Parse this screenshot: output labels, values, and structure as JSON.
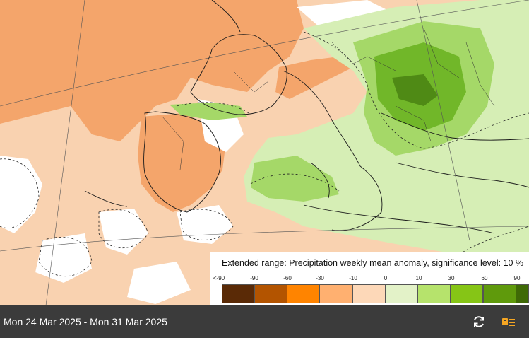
{
  "legend": {
    "title": "Extended range: Precipitation weekly mean anomaly, significance level: 10 %",
    "ticks": [
      "<-90",
      "-90",
      "-60",
      "-30",
      "-10",
      "0",
      "10",
      "30",
      "60",
      "90"
    ],
    "colors": [
      "#5a2a06",
      "#b35400",
      "#ff8400",
      "#ffb070",
      "#fdd8b8",
      "#e3f2c8",
      "#b6e36c",
      "#86c516",
      "#5f9a0c",
      "#3f6a06"
    ]
  },
  "bottom_bar": {
    "date_range": "Mon 24 Mar 2025 - Mon 31 Mar 2025",
    "refresh_icon": "refresh-icon",
    "menu_icon": "layer-list-icon",
    "accent": "#f5a623"
  },
  "map": {
    "palette": {
      "dry_strong": "#f4a56b",
      "dry_light": "#f9d2b0",
      "neutral": "#ffffff",
      "wet_light": "#d6eeb5",
      "wet_mid": "#a5d868",
      "wet_strong": "#71b729",
      "wet_dark": "#4f8a15"
    }
  }
}
